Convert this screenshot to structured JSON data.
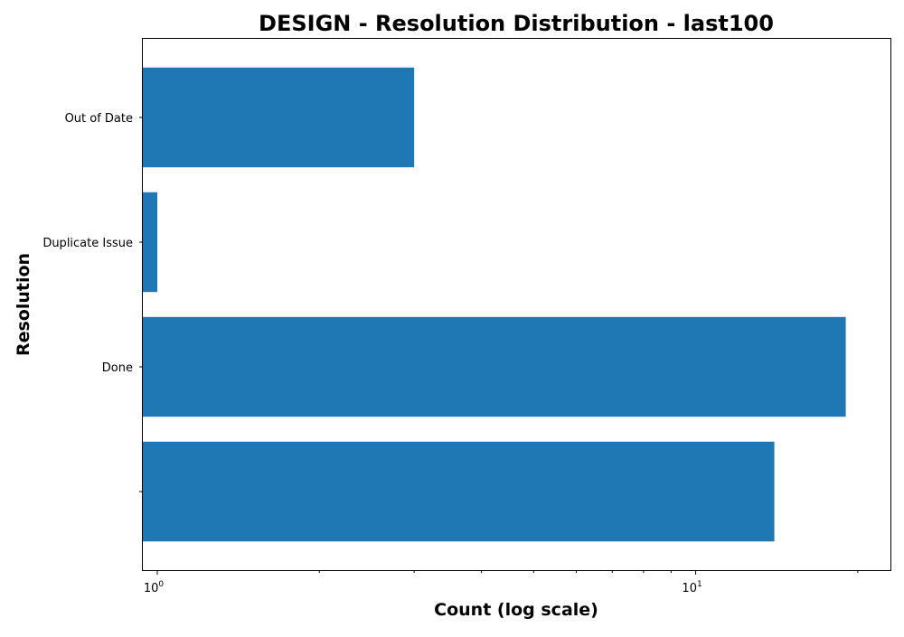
{
  "chart_data": {
    "type": "bar",
    "orientation": "horizontal",
    "title": "DESIGN - Resolution Distribution - last100",
    "xlabel": "Count (log scale)",
    "ylabel": "Resolution",
    "x_scale": "log",
    "xlim": [
      0.94,
      23
    ],
    "grid": false,
    "legend": "none",
    "bar_color": "#1f77b4",
    "categories": [
      "",
      "Done",
      "Duplicate Issue",
      "Out of Date"
    ],
    "values": [
      14,
      19,
      1,
      3
    ],
    "x_ticks": [
      {
        "base": "10",
        "exp": "0",
        "value": 1
      },
      {
        "base": "10",
        "exp": "1",
        "value": 10
      }
    ],
    "x_minor_ticks": [
      2,
      3,
      4,
      5,
      6,
      7,
      8,
      9,
      20
    ]
  }
}
